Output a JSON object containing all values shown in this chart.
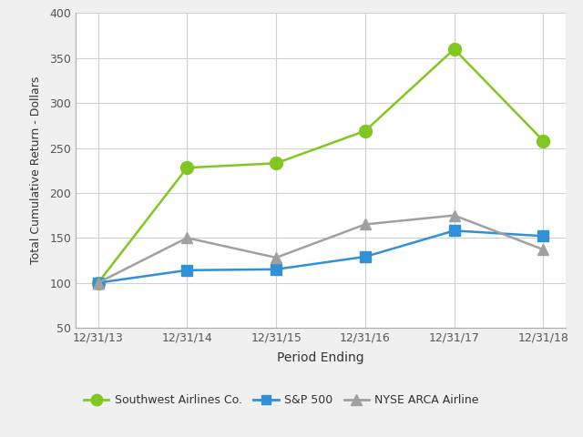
{
  "x_labels": [
    "12/31/13",
    "12/31/14",
    "12/31/15",
    "12/31/16",
    "12/31/17",
    "12/31/18"
  ],
  "southwest": [
    100,
    228,
    233,
    269,
    360,
    258
  ],
  "sp500": [
    100,
    114,
    115,
    129,
    158,
    152
  ],
  "nyse": [
    100,
    150,
    128,
    165,
    175,
    137
  ],
  "southwest_color": "#80c820",
  "sp500_color": "#3090d8",
  "nyse_color": "#a0a0a0",
  "southwest_label": "Southwest Airlines Co.",
  "sp500_label": "S&P 500",
  "nyse_label": "NYSE ARCA Airline",
  "xlabel": "Period Ending",
  "ylabel": "Total Cumulative Return - Dollars",
  "ylim": [
    50,
    400
  ],
  "yticks": [
    50,
    100,
    150,
    200,
    250,
    300,
    350,
    400
  ],
  "fig_bg_color": "#f0f0f0",
  "plot_bg_color": "#ffffff",
  "grid_color": "#d0d0d0",
  "tick_color": "#555555",
  "label_color": "#333333",
  "spine_color": "#aaaaaa",
  "marker_size_sw": 10,
  "marker_size_sp": 8,
  "marker_size_ny": 9,
  "line_width": 1.8
}
